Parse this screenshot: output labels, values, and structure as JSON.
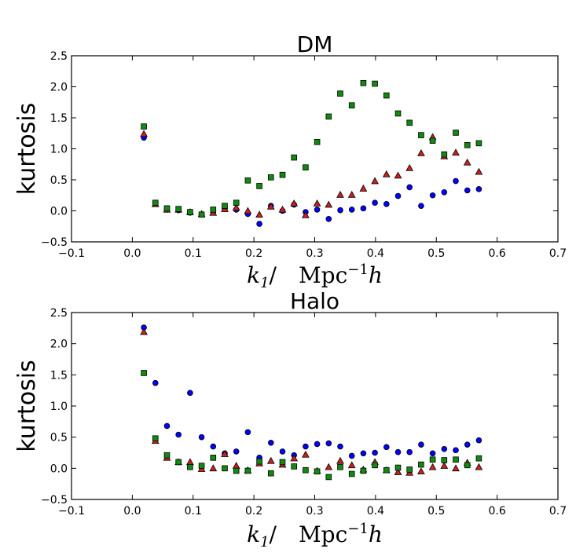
{
  "chart_data": [
    {
      "type": "scatter",
      "title": "DM",
      "xlabel": "k_1/ Mpc^-1 h",
      "xlabel_parts": {
        "var": "k",
        "sub": "1",
        "sep": "/",
        "unit": "Mpc",
        "exp": "−1",
        "tail": "h"
      },
      "ylabel": "kurtosis",
      "xlim": [
        -0.1,
        0.7
      ],
      "ylim": [
        -0.5,
        2.5
      ],
      "xticks": [
        "−0.1",
        "0.0",
        "0.1",
        "0.2",
        "0.3",
        "0.4",
        "0.5",
        "0.6",
        "0.7"
      ],
      "xtick_values": [
        -0.1,
        0.0,
        0.1,
        0.2,
        0.3,
        0.4,
        0.5,
        0.6,
        0.7
      ],
      "yticks": [
        "−0.5",
        "0.0",
        "0.5",
        "1.0",
        "1.5",
        "2.0",
        "2.5"
      ],
      "ytick_values": [
        -0.5,
        0.0,
        0.5,
        1.0,
        1.5,
        2.0,
        2.5
      ],
      "x": [
        0.019,
        0.038,
        0.057,
        0.076,
        0.095,
        0.114,
        0.133,
        0.152,
        0.171,
        0.19,
        0.209,
        0.228,
        0.247,
        0.266,
        0.285,
        0.304,
        0.323,
        0.342,
        0.361,
        0.38,
        0.399,
        0.418,
        0.437,
        0.456,
        0.475,
        0.494,
        0.513,
        0.532,
        0.551,
        0.57
      ],
      "series": [
        {
          "name": "blue",
          "marker": "circle",
          "color": "#0000ff",
          "values": [
            1.18,
            0.12,
            0.02,
            0.01,
            -0.03,
            -0.06,
            -0.02,
            0.04,
            0.02,
            -0.05,
            -0.21,
            0.08,
            0.0,
            0.1,
            -0.02,
            0.02,
            -0.13,
            0.01,
            0.02,
            0.04,
            0.13,
            0.11,
            0.24,
            0.38,
            0.08,
            0.25,
            0.3,
            0.48,
            0.33,
            0.35
          ]
        },
        {
          "name": "red",
          "marker": "triangle",
          "color": "#cc1f1f",
          "values": [
            1.24,
            0.11,
            0.02,
            0.02,
            -0.02,
            -0.05,
            -0.03,
            0.03,
            0.05,
            0.0,
            -0.06,
            0.07,
            0.02,
            0.12,
            -0.07,
            0.12,
            0.1,
            0.26,
            0.26,
            0.36,
            0.48,
            0.59,
            0.57,
            0.69,
            0.93,
            1.19,
            0.88,
            0.94,
            0.78,
            0.63
          ]
        },
        {
          "name": "green",
          "marker": "square",
          "color": "#128a12",
          "values": [
            1.36,
            0.13,
            0.04,
            0.03,
            -0.02,
            -0.06,
            0.02,
            0.08,
            0.13,
            0.49,
            0.4,
            0.54,
            0.58,
            0.86,
            0.7,
            1.11,
            1.52,
            1.89,
            1.7,
            2.06,
            2.05,
            1.86,
            1.57,
            1.42,
            1.22,
            1.13,
            0.91,
            1.26,
            1.06,
            1.09
          ]
        }
      ]
    },
    {
      "type": "scatter",
      "title": "Halo",
      "xlabel": "k_1/ Mpc^-1 h",
      "xlabel_parts": {
        "var": "k",
        "sub": "1",
        "sep": "/",
        "unit": "Mpc",
        "exp": "−1",
        "tail": "h"
      },
      "ylabel": "kurtosis",
      "xlim": [
        -0.1,
        0.7
      ],
      "ylim": [
        -0.5,
        2.5
      ],
      "xticks": [
        "−0.1",
        "0.0",
        "0.1",
        "0.2",
        "0.3",
        "0.4",
        "0.5",
        "0.6",
        "0.7"
      ],
      "xtick_values": [
        -0.1,
        0.0,
        0.1,
        0.2,
        0.3,
        0.4,
        0.5,
        0.6,
        0.7
      ],
      "yticks": [
        "−0.5",
        "0.0",
        "0.5",
        "1.0",
        "1.5",
        "2.0",
        "2.5"
      ],
      "ytick_values": [
        -0.5,
        0.0,
        0.5,
        1.0,
        1.5,
        2.0,
        2.5
      ],
      "x": [
        0.019,
        0.038,
        0.057,
        0.076,
        0.095,
        0.114,
        0.133,
        0.152,
        0.171,
        0.19,
        0.209,
        0.228,
        0.247,
        0.266,
        0.285,
        0.304,
        0.323,
        0.342,
        0.361,
        0.38,
        0.399,
        0.418,
        0.437,
        0.456,
        0.475,
        0.494,
        0.513,
        0.532,
        0.551,
        0.57
      ],
      "series": [
        {
          "name": "blue",
          "marker": "circle",
          "color": "#0000ff",
          "values": [
            2.26,
            1.37,
            0.68,
            0.54,
            1.21,
            0.5,
            0.35,
            0.24,
            0.27,
            0.58,
            0.17,
            0.41,
            0.27,
            0.21,
            0.35,
            0.39,
            0.4,
            0.35,
            0.2,
            0.24,
            0.25,
            0.34,
            0.26,
            0.26,
            0.38,
            0.24,
            0.31,
            0.29,
            0.38,
            0.45
          ]
        },
        {
          "name": "red",
          "marker": "triangle",
          "color": "#cc1f1f",
          "values": [
            2.19,
            0.44,
            0.17,
            0.1,
            0.1,
            -0.01,
            0.0,
            0.23,
            0.04,
            -0.03,
            0.08,
            0.12,
            0.06,
            0.16,
            0.22,
            -0.04,
            0.02,
            0.12,
            0.05,
            -0.02,
            0.1,
            -0.03,
            -0.06,
            -0.07,
            -0.05,
            0.02,
            0.04,
            0.0,
            0.09,
            0.02
          ]
        },
        {
          "name": "green",
          "marker": "square",
          "color": "#128a12",
          "values": [
            1.53,
            0.48,
            0.21,
            0.1,
            0.02,
            0.04,
            0.17,
            0.0,
            -0.04,
            -0.04,
            0.11,
            -0.08,
            0.1,
            0.03,
            -0.03,
            -0.05,
            -0.14,
            0.02,
            -0.09,
            -0.04,
            0.05,
            -0.03,
            0.01,
            -0.02,
            0.06,
            0.14,
            0.13,
            0.14,
            0.05,
            0.16
          ]
        }
      ]
    }
  ]
}
